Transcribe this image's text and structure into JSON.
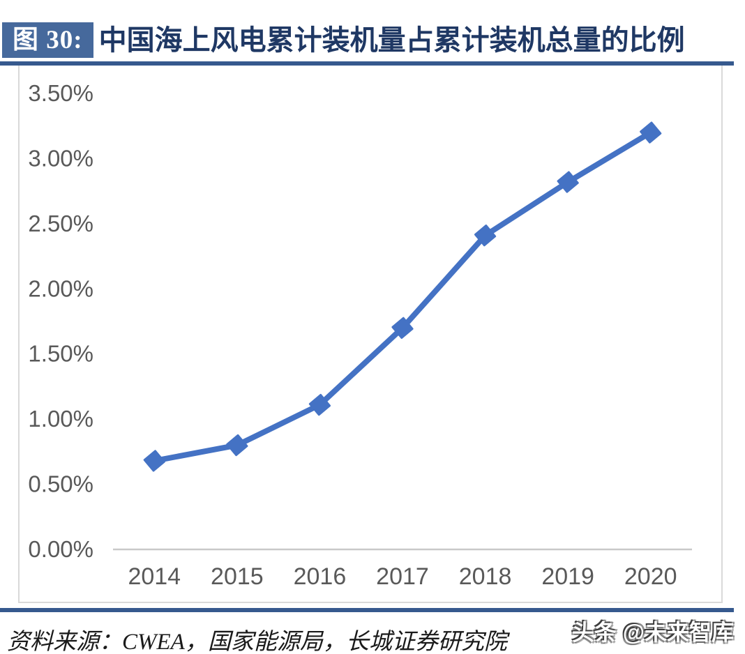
{
  "header": {
    "figure_label": "图 30:",
    "title": "中国海上风电累计装机量占累计装机总量的比例"
  },
  "footer": {
    "source": "资料来源：CWEA，国家能源局，长城证券研究院",
    "watermark": "头条 @未来智库"
  },
  "colors": {
    "line": "#4472c4",
    "marker": "#4472c4",
    "title_text": "#1f3864",
    "figure_label_bg": "#46699c",
    "rule": "#36598e",
    "axis_text": "#595959",
    "axis_line": "#c9c9c9",
    "frame_border": "#d9d9d9"
  },
  "chart_data": {
    "type": "line",
    "title": "中国海上风电累计装机量占累计装机总量的比例",
    "categories": [
      "2014",
      "2015",
      "2016",
      "2017",
      "2018",
      "2019",
      "2020"
    ],
    "series": [
      {
        "name": "中国海上风电累计装机量占累计装机总量的比例",
        "values": [
          0.68,
          0.8,
          1.11,
          1.7,
          2.41,
          2.82,
          3.2
        ]
      }
    ],
    "xlabel": "",
    "ylabel": "",
    "ylim": [
      0,
      3.5
    ],
    "ytick_step": 0.5,
    "ytick_labels": [
      "0.00%",
      "0.50%",
      "1.00%",
      "1.50%",
      "2.00%",
      "2.50%",
      "3.00%",
      "3.50%"
    ],
    "grid": false,
    "legend_position": "none",
    "marker_shape": "diamond"
  }
}
